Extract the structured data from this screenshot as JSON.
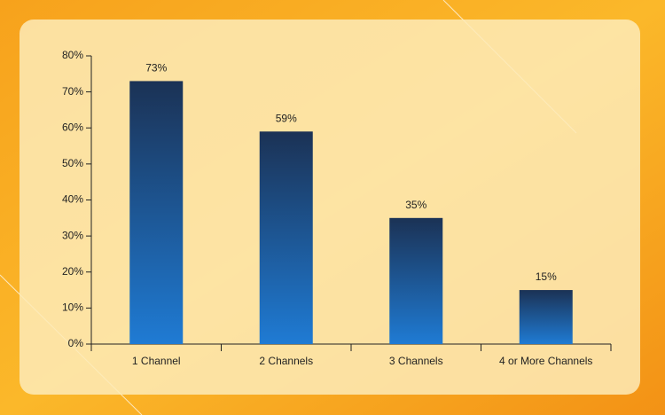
{
  "chart_data": {
    "type": "bar",
    "categories": [
      "1 Channel",
      "2 Channels",
      "3 Channels",
      "4 or More Channels"
    ],
    "values": [
      73,
      59,
      35,
      15
    ],
    "value_labels": [
      "73%",
      "59%",
      "35%",
      "15%"
    ],
    "gradient": [
      "#1b3255",
      "#1f7bd4"
    ],
    "ylim": [
      0,
      80
    ],
    "yticks": [
      {
        "value": 0,
        "label": "0%"
      },
      {
        "value": 10,
        "label": "10%"
      },
      {
        "value": 20,
        "label": "20%"
      },
      {
        "value": 30,
        "label": "30%"
      },
      {
        "value": 40,
        "label": "40%"
      },
      {
        "value": 50,
        "label": "50%"
      },
      {
        "value": 60,
        "label": "60%"
      },
      {
        "value": 70,
        "label": "70%"
      },
      {
        "value": 80,
        "label": "80%"
      }
    ]
  }
}
